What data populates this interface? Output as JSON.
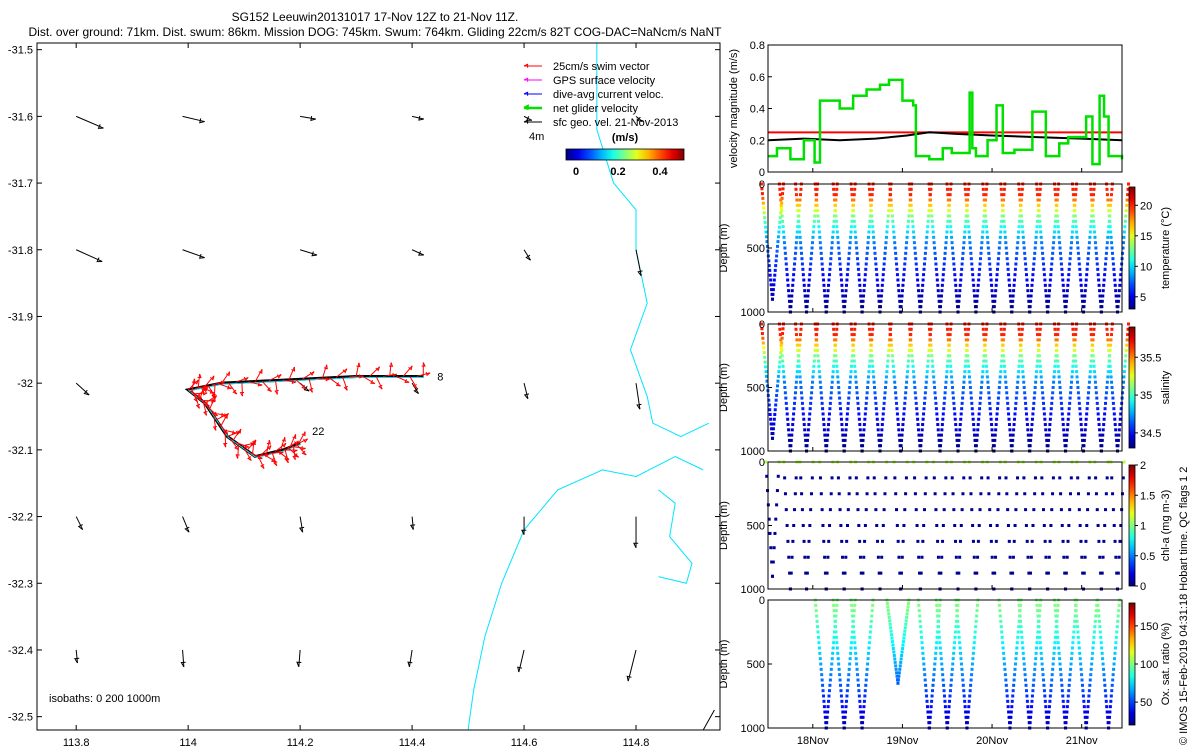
{
  "header": {
    "title_line1": "SG152 Leeuwin20131017 17-Nov 12Z to 21-Nov 11Z.",
    "title_line2": "Dist. over ground: 71km. Dist. swum: 86km. Mission DOG: 745km. Swum: 764km. Gliding 22cm/s 82T COG-DAC=NaNcm/s NaNT"
  },
  "credit": "© IMOS 15-Feb-2019 04:31:18 Hobart time. QC flags 1  2",
  "colors": {
    "swim": "#ff0000",
    "gps": "#ff00ff",
    "dac": "#0000ff",
    "net": "#00e000",
    "geo": "#000000",
    "coast": "#00e5ff",
    "speed_ref": "#ff0000"
  },
  "chart_data": [
    {
      "type": "scatter",
      "name": "map",
      "xlim": [
        113.73,
        114.95
      ],
      "ylim": [
        -32.52,
        -31.49
      ],
      "xticks": [
        113.8,
        114,
        114.2,
        114.4,
        114.6,
        114.8
      ],
      "yticks": [
        -31.5,
        -31.6,
        -31.7,
        -31.8,
        -31.9,
        -32,
        -32.1,
        -32.2,
        -32.3,
        -32.4,
        -32.5
      ],
      "legend": [
        {
          "label": "25cm/s swim vector",
          "color": "#ff0000"
        },
        {
          "label": "GPS surface velocity",
          "color": "#ff00ff"
        },
        {
          "label": "dive-avg current veloc.",
          "color": "#0000ff"
        },
        {
          "label": "net glider velocity",
          "color": "#00e000"
        },
        {
          "label": "sfc geo. vel. 21-Nov-2013",
          "color": "#000000"
        }
      ],
      "legend_position": "top-right",
      "scale_label": "(m/s)",
      "scale_ticks": [
        "0",
        "0.2",
        "0.4"
      ],
      "scale_arrow_label": "4m",
      "isobaths_label": "isobaths: 0   200  1000m",
      "track": [
        [
          114.42,
          -31.99
        ],
        [
          114.3,
          -31.99
        ],
        [
          114.18,
          -31.995
        ],
        [
          114.06,
          -32.0
        ],
        [
          114.0,
          -32.01
        ],
        [
          114.03,
          -32.03
        ],
        [
          114.07,
          -32.08
        ],
        [
          114.12,
          -32.11
        ],
        [
          114.17,
          -32.1
        ],
        [
          114.2,
          -32.09
        ]
      ],
      "track_end_labels": [
        "8",
        "22"
      ],
      "geo_vectors": [
        {
          "x": 113.8,
          "y": -31.6,
          "u": 0.21,
          "v": -0.09
        },
        {
          "x": 113.99,
          "y": -31.6,
          "u": 0.17,
          "v": -0.04
        },
        {
          "x": 114.2,
          "y": -31.6,
          "u": 0.12,
          "v": -0.02
        },
        {
          "x": 114.4,
          "y": -31.6,
          "u": 0.09,
          "v": -0.02
        },
        {
          "x": 114.6,
          "y": -31.6,
          "u": 0.06,
          "v": -0.03
        },
        {
          "x": 114.8,
          "y": -31.6,
          "u": 0.05,
          "v": -0.04
        },
        {
          "x": 113.8,
          "y": -31.8,
          "u": 0.2,
          "v": -0.09
        },
        {
          "x": 113.99,
          "y": -31.8,
          "u": 0.17,
          "v": -0.06
        },
        {
          "x": 114.2,
          "y": -31.8,
          "u": 0.13,
          "v": -0.04
        },
        {
          "x": 114.4,
          "y": -31.8,
          "u": 0.09,
          "v": -0.04
        },
        {
          "x": 114.6,
          "y": -31.8,
          "u": 0.05,
          "v": -0.08
        },
        {
          "x": 114.8,
          "y": -31.8,
          "u": 0.04,
          "v": -0.2
        },
        {
          "x": 113.8,
          "y": -32.0,
          "u": 0.1,
          "v": -0.09
        },
        {
          "x": 114.2,
          "y": -32.0,
          "u": 0.07,
          "v": -0.06
        },
        {
          "x": 114.4,
          "y": -32.0,
          "u": 0.05,
          "v": -0.08
        },
        {
          "x": 114.6,
          "y": -32.0,
          "u": 0.03,
          "v": -0.12
        },
        {
          "x": 114.8,
          "y": -32.0,
          "u": 0.03,
          "v": -0.2
        },
        {
          "x": 113.8,
          "y": -32.2,
          "u": 0.05,
          "v": -0.1
        },
        {
          "x": 113.99,
          "y": -32.2,
          "u": 0.05,
          "v": -0.12
        },
        {
          "x": 114.2,
          "y": -32.2,
          "u": 0.02,
          "v": -0.12
        },
        {
          "x": 114.4,
          "y": -32.2,
          "u": 0.01,
          "v": -0.1
        },
        {
          "x": 114.6,
          "y": -32.2,
          "u": 0.0,
          "v": -0.14
        },
        {
          "x": 114.8,
          "y": -32.2,
          "u": 0.0,
          "v": -0.24
        },
        {
          "x": 113.8,
          "y": -32.4,
          "u": 0.01,
          "v": -0.1
        },
        {
          "x": 113.99,
          "y": -32.4,
          "u": 0.01,
          "v": -0.13
        },
        {
          "x": 114.2,
          "y": -32.4,
          "u": -0.01,
          "v": -0.13
        },
        {
          "x": 114.4,
          "y": -32.4,
          "u": -0.02,
          "v": -0.13
        },
        {
          "x": 114.6,
          "y": -32.4,
          "u": -0.04,
          "v": -0.17
        },
        {
          "x": 114.8,
          "y": -32.4,
          "u": -0.06,
          "v": -0.24
        }
      ]
    },
    {
      "type": "line",
      "name": "velocity",
      "ylabel": "velocity magnitude (m/s)",
      "xlim": [
        17.5,
        21.45
      ],
      "ylim": [
        0,
        0.8
      ],
      "yticks": [
        0,
        0.2,
        0.4,
        0.6,
        0.8
      ],
      "series": [
        {
          "color": "#ff0000",
          "x": [
            17.5,
            21.45
          ],
          "values": [
            0.25,
            0.25
          ]
        },
        {
          "color": "#000000",
          "x": [
            17.5,
            17.9,
            18.3,
            18.7,
            19.05,
            19.3,
            19.6,
            20.0,
            20.5,
            21.0,
            21.45
          ],
          "values": [
            0.2,
            0.21,
            0.2,
            0.21,
            0.23,
            0.25,
            0.24,
            0.23,
            0.22,
            0.21,
            0.2
          ]
        },
        {
          "color": "#00e000",
          "steps": true,
          "x": [
            17.5,
            17.6,
            17.75,
            17.9,
            18.02,
            18.08,
            18.3,
            18.45,
            18.6,
            18.75,
            18.85,
            19.0,
            19.12,
            19.15,
            19.3,
            19.45,
            19.55,
            19.75,
            19.78,
            19.82,
            19.95,
            20.05,
            20.12,
            20.25,
            20.45,
            20.6,
            20.75,
            20.85,
            21.05,
            21.12,
            21.2,
            21.25,
            21.3,
            21.45
          ],
          "values": [
            0.1,
            0.15,
            0.08,
            0.2,
            0.06,
            0.45,
            0.4,
            0.48,
            0.52,
            0.55,
            0.58,
            0.45,
            0.42,
            0.1,
            0.08,
            0.15,
            0.12,
            0.5,
            0.15,
            0.1,
            0.2,
            0.42,
            0.12,
            0.14,
            0.38,
            0.1,
            0.18,
            0.22,
            0.35,
            0.05,
            0.48,
            0.35,
            0.1,
            0.08
          ]
        }
      ]
    },
    {
      "type": "scatter",
      "name": "temperature",
      "ylabel": "Depth (m)",
      "clabel": "temperature (°C)",
      "ylim": [
        1000,
        0
      ],
      "yticks": [
        0,
        500,
        1000
      ],
      "clim": [
        3,
        23
      ],
      "cticks": [
        5,
        10,
        15,
        20
      ],
      "profiles": [
        {
          "time": 17.55,
          "max_depth": 900
        },
        {
          "time": 17.75,
          "max_depth": 1000
        },
        {
          "time": 17.93,
          "max_depth": 1000
        },
        {
          "time": 18.15,
          "max_depth": 1000
        },
        {
          "time": 18.35,
          "max_depth": 1000
        },
        {
          "time": 18.55,
          "max_depth": 1000
        },
        {
          "time": 18.75,
          "max_depth": 1000
        },
        {
          "time": 18.98,
          "max_depth": 1000
        },
        {
          "time": 19.2,
          "max_depth": 1000
        },
        {
          "time": 19.42,
          "max_depth": 1000
        },
        {
          "time": 19.62,
          "max_depth": 1000
        },
        {
          "time": 19.82,
          "max_depth": 1000
        },
        {
          "time": 20.02,
          "max_depth": 1000
        },
        {
          "time": 20.22,
          "max_depth": 1000
        },
        {
          "time": 20.42,
          "max_depth": 1000
        },
        {
          "time": 20.62,
          "max_depth": 1000
        },
        {
          "time": 20.82,
          "max_depth": 1000
        },
        {
          "time": 21.02,
          "max_depth": 1000
        },
        {
          "time": 21.22,
          "max_depth": 1000
        },
        {
          "time": 21.4,
          "max_depth": 1000
        }
      ]
    },
    {
      "type": "scatter",
      "name": "salinity",
      "ylabel": "Depth (m)",
      "clabel": "salinity",
      "ylim": [
        1000,
        0
      ],
      "yticks": [
        0,
        500,
        1000
      ],
      "clim": [
        34.3,
        35.9
      ],
      "cticks": [
        34.5,
        35,
        35.5
      ]
    },
    {
      "type": "scatter",
      "name": "chl-a",
      "ylabel": "Depth (m)",
      "clabel": "chl-a (mg m-3)",
      "ylim": [
        1000,
        0
      ],
      "yticks": [
        0,
        500,
        1000
      ],
      "clim": [
        0,
        2
      ],
      "cticks": [
        0,
        0.5,
        1,
        1.5,
        2
      ]
    },
    {
      "type": "scatter",
      "name": "oxygen",
      "ylabel": "Depth (m)",
      "clabel": "Ox. sat. ratio (%)",
      "ylim": [
        1000,
        0
      ],
      "yticks": [
        0,
        500,
        1000
      ],
      "clim": [
        20,
        180
      ],
      "cticks": [
        50,
        100,
        150
      ],
      "xlim": [
        17.5,
        21.45
      ],
      "xticks": [
        {
          "label": "18Nov",
          "value": 18
        },
        {
          "label": "19Nov",
          "value": 19
        },
        {
          "label": "20Nov",
          "value": 20
        },
        {
          "label": "21Nov",
          "value": 21
        }
      ],
      "profiles": [
        {
          "time": 18.15,
          "max_depth": 1000
        },
        {
          "time": 18.35,
          "max_depth": 1000
        },
        {
          "time": 18.55,
          "max_depth": 1000
        },
        {
          "time": 18.95,
          "max_depth": 650
        },
        {
          "time": 19.3,
          "max_depth": 1000
        },
        {
          "time": 19.5,
          "max_depth": 1000
        },
        {
          "time": 19.72,
          "max_depth": 1000
        },
        {
          "time": 20.2,
          "max_depth": 1000
        },
        {
          "time": 20.42,
          "max_depth": 1000
        },
        {
          "time": 20.62,
          "max_depth": 1000
        },
        {
          "time": 20.82,
          "max_depth": 1000
        },
        {
          "time": 21.05,
          "max_depth": 1000
        },
        {
          "time": 21.3,
          "max_depth": 1000
        }
      ]
    }
  ]
}
